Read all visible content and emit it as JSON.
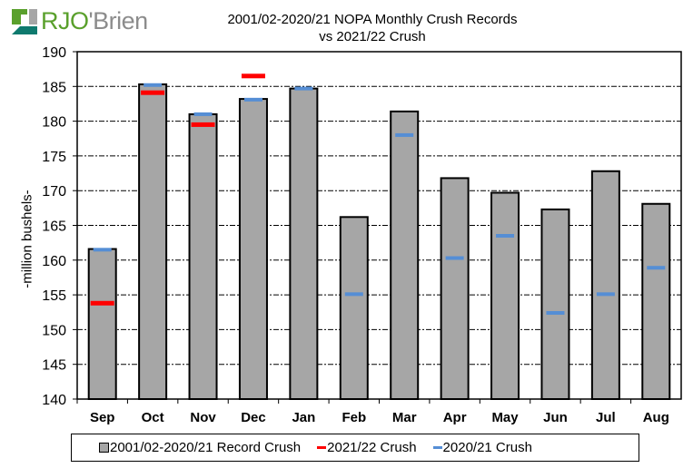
{
  "logo": {
    "text_primary": "RJO",
    "text_secondary": "'Brien"
  },
  "chart_data": {
    "type": "bar",
    "title": "2001/02-2020/21  NOPA Monthly Crush Records",
    "subtitle": "vs 2021/22 Crush",
    "xlabel": "",
    "ylabel": "-million bushels-",
    "ylim": [
      140,
      190
    ],
    "yticks": [
      140,
      145,
      150,
      155,
      160,
      165,
      170,
      175,
      180,
      185,
      190
    ],
    "grid": true,
    "legend_position": "bottom",
    "categories": [
      "Sep",
      "Oct",
      "Nov",
      "Dec",
      "Jan",
      "Feb",
      "Mar",
      "Apr",
      "May",
      "Jun",
      "Jul",
      "Aug"
    ],
    "series": [
      {
        "name": "2001/02-2020/21 Record Crush",
        "kind": "bar",
        "color": "#a6a6a6",
        "values": [
          161.6,
          185.3,
          181.0,
          183.2,
          184.7,
          166.2,
          181.4,
          171.8,
          169.7,
          167.3,
          172.8,
          168.1
        ]
      },
      {
        "name": "2021/22 Crush",
        "kind": "marker",
        "color": "#ff0000",
        "values": [
          153.8,
          184.1,
          179.5,
          186.5,
          null,
          null,
          null,
          null,
          null,
          null,
          null,
          null
        ]
      },
      {
        "name": "2020/21 Crush",
        "kind": "marker",
        "color": "#558ed5",
        "values": [
          161.5,
          185.2,
          181.0,
          183.1,
          184.7,
          155.1,
          178.0,
          160.3,
          163.5,
          152.4,
          155.1,
          158.9
        ]
      }
    ]
  }
}
